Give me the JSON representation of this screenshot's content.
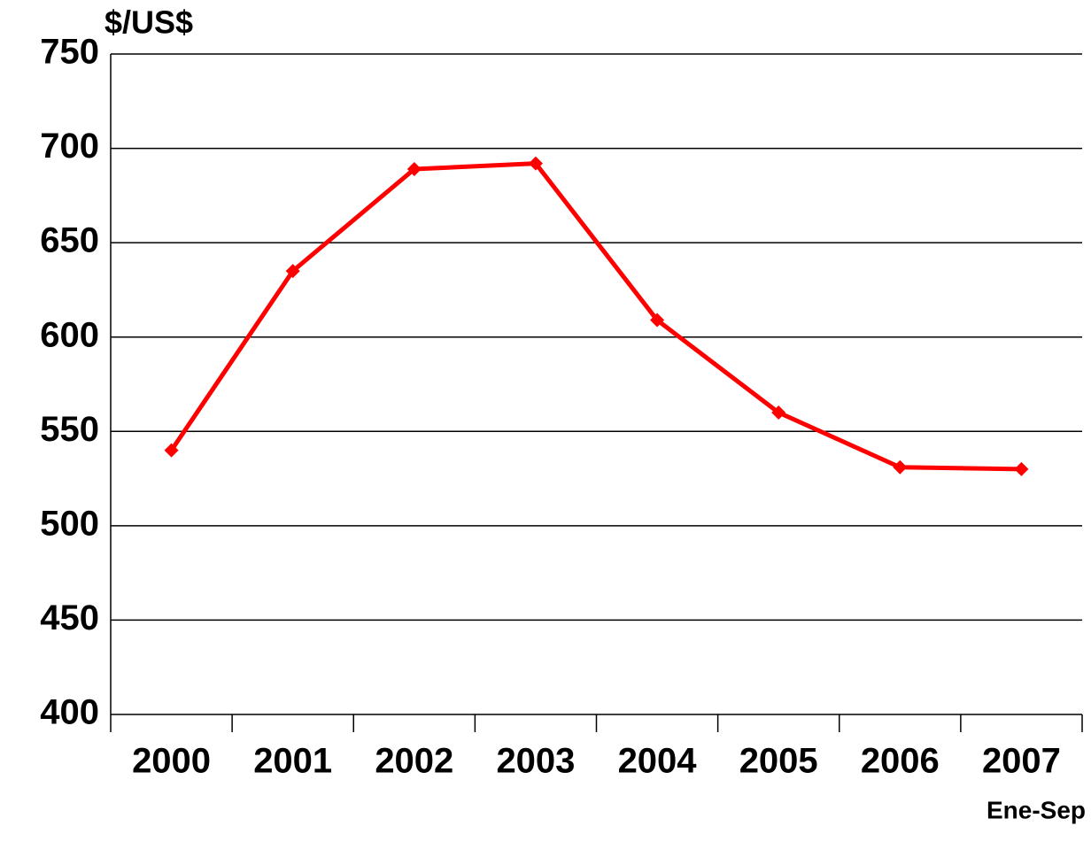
{
  "chart_data": {
    "type": "line",
    "title": "$/US$",
    "categories": [
      "2000",
      "2001",
      "2002",
      "2003",
      "2004",
      "2005",
      "2006",
      "2007"
    ],
    "annotation": "Ene-Sep",
    "series": [
      {
        "color": "#ff0000",
        "values": [
          540,
          635,
          689,
          692,
          609,
          560,
          531,
          530
        ]
      }
    ],
    "ylim": [
      400,
      750
    ],
    "yticks": [
      400,
      450,
      500,
      550,
      600,
      650,
      700,
      750
    ],
    "grid": true
  }
}
